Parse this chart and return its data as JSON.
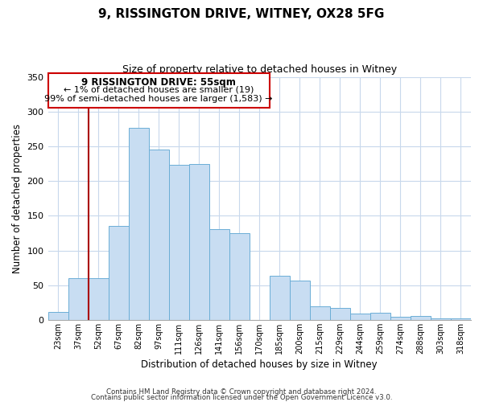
{
  "title": "9, RISSINGTON DRIVE, WITNEY, OX28 5FG",
  "subtitle": "Size of property relative to detached houses in Witney",
  "xlabel": "Distribution of detached houses by size in Witney",
  "ylabel": "Number of detached properties",
  "bar_color": "#c8ddf2",
  "bar_edge_color": "#6baed6",
  "categories": [
    "23sqm",
    "37sqm",
    "52sqm",
    "67sqm",
    "82sqm",
    "97sqm",
    "111sqm",
    "126sqm",
    "141sqm",
    "156sqm",
    "170sqm",
    "185sqm",
    "200sqm",
    "215sqm",
    "229sqm",
    "244sqm",
    "259sqm",
    "274sqm",
    "288sqm",
    "303sqm",
    "318sqm"
  ],
  "values": [
    11,
    60,
    60,
    135,
    277,
    245,
    223,
    225,
    131,
    125,
    0,
    63,
    57,
    19,
    17,
    9,
    10,
    4,
    6,
    2,
    2
  ],
  "vline_color": "#aa0000",
  "vline_index": 2,
  "ylim": [
    0,
    350
  ],
  "yticks": [
    0,
    50,
    100,
    150,
    200,
    250,
    300,
    350
  ],
  "annotation_title": "9 RISSINGTON DRIVE: 55sqm",
  "annotation_line1": "← 1% of detached houses are smaller (19)",
  "annotation_line2": "99% of semi-detached houses are larger (1,583) →",
  "footer1": "Contains HM Land Registry data © Crown copyright and database right 2024.",
  "footer2": "Contains public sector information licensed under the Open Government Licence v3.0.",
  "background_color": "#ffffff",
  "grid_color": "#c8d8ec"
}
